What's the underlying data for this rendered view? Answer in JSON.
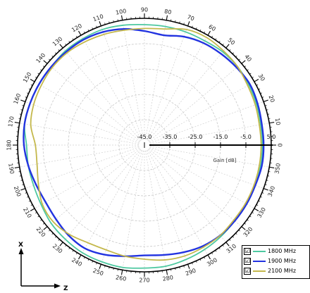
{
  "chart_data": {
    "type": "polar-line",
    "theta_unit": "deg",
    "theta_ticks": [
      "0",
      "10",
      "20",
      "30",
      "40",
      "50",
      "60",
      "70",
      "80",
      "90",
      "100",
      "110",
      "120",
      "130",
      "140",
      "150",
      "160",
      "170",
      "180",
      "190",
      "200",
      "210",
      "220",
      "230",
      "240",
      "250",
      "260",
      "270",
      "280",
      "290",
      "300",
      "310",
      "320",
      "330",
      "340",
      "350"
    ],
    "r_ticks": [
      "-45.0",
      "-35.0",
      "-25.0",
      "-15.0",
      "-5.0",
      "5.0"
    ],
    "r_range": [
      -45,
      5
    ],
    "r_axis_label": "Gain [dB]",
    "grid": true,
    "legend_position": "bottom-right",
    "series": [
      {
        "name": "1800 MHz",
        "color": "#4dc8a0",
        "theta": [
          0,
          10,
          20,
          30,
          40,
          50,
          60,
          70,
          80,
          90,
          100,
          110,
          120,
          130,
          140,
          150,
          160,
          170,
          180,
          190,
          200,
          210,
          220,
          230,
          240,
          250,
          260,
          270,
          280,
          290,
          300,
          310,
          320,
          330,
          340,
          350
        ],
        "gain": [
          1.5,
          1.5,
          2.0,
          2.5,
          3.0,
          3.0,
          2.5,
          2.5,
          2.5,
          2.5,
          3.0,
          3.5,
          3.5,
          3.5,
          3.0,
          3.0,
          3.0,
          3.0,
          1.5,
          1.5,
          1.5,
          2.0,
          3.0,
          3.5,
          4.0,
          4.0,
          4.0,
          3.5,
          3.5,
          3.0,
          2.5,
          2.0,
          1.5,
          1.5,
          1.5,
          1.5
        ]
      },
      {
        "name": "1900 MHz",
        "color": "#2233e0",
        "theta": [
          0,
          10,
          20,
          30,
          40,
          50,
          60,
          70,
          80,
          90,
          100,
          110,
          120,
          130,
          140,
          150,
          160,
          170,
          180,
          190,
          200,
          210,
          220,
          230,
          240,
          250,
          260,
          270,
          280,
          290,
          300,
          310,
          320,
          330,
          340,
          350
        ],
        "gain": [
          2.0,
          2.0,
          2.5,
          3.0,
          2.5,
          2.0,
          1.5,
          0.5,
          -1.0,
          0.0,
          1.5,
          2.5,
          3.0,
          3.0,
          3.0,
          3.0,
          3.0,
          3.0,
          2.5,
          1.5,
          0.5,
          0.0,
          0.5,
          1.5,
          2.0,
          1.0,
          -0.5,
          -1.5,
          -1.0,
          0.0,
          1.0,
          1.5,
          1.5,
          1.5,
          1.5,
          2.0
        ]
      },
      {
        "name": "2100 MHz",
        "color": "#c4b84c",
        "theta": [
          0,
          10,
          20,
          30,
          40,
          50,
          60,
          70,
          80,
          90,
          100,
          110,
          120,
          130,
          140,
          150,
          160,
          170,
          180,
          190,
          200,
          210,
          220,
          230,
          240,
          250,
          260,
          270,
          280,
          290,
          300,
          310,
          320,
          330,
          340,
          350
        ],
        "gain": [
          1.0,
          1.0,
          1.5,
          2.0,
          3.0,
          3.5,
          4.0,
          3.5,
          1.5,
          1.0,
          1.0,
          1.5,
          2.0,
          2.5,
          2.5,
          2.0,
          1.5,
          0.5,
          -2.0,
          -2.0,
          -0.5,
          1.5,
          2.0,
          1.0,
          -0.5,
          -1.0,
          -0.5,
          0.0,
          1.0,
          1.5,
          1.5,
          1.5,
          1.0,
          1.0,
          1.0,
          1.0
        ]
      }
    ]
  },
  "triad": {
    "x_label": "X",
    "z_label": "Z"
  },
  "legend": {
    "items": [
      {
        "label": "1800 MHz",
        "checked": "☑",
        "color": "#4dc8a0"
      },
      {
        "label": "1900 MHz",
        "checked": "☑",
        "color": "#2233e0"
      },
      {
        "label": "2100 MHz",
        "checked": "☑",
        "color": "#c4b84c"
      }
    ]
  }
}
